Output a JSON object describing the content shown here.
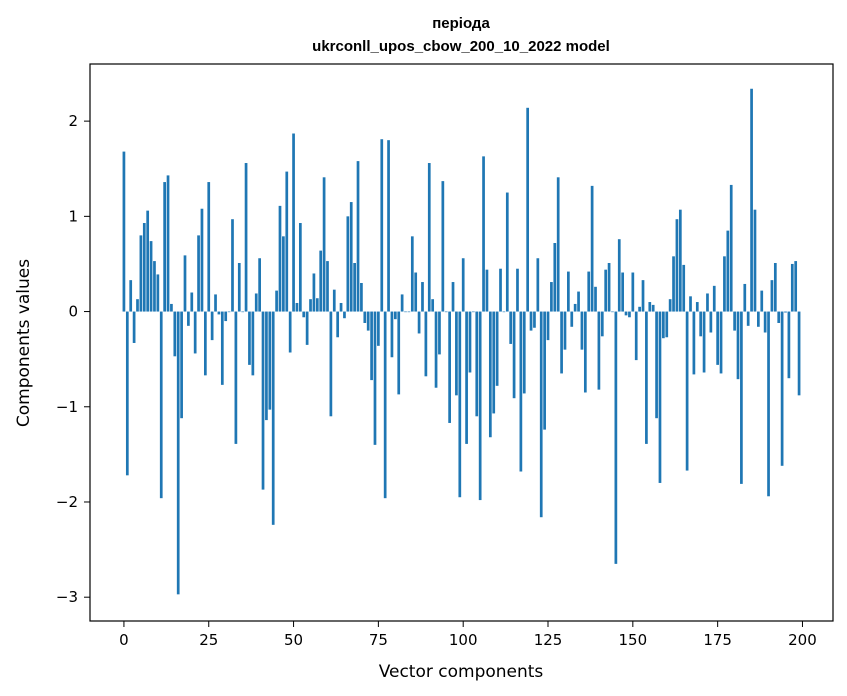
{
  "chart_data": {
    "type": "bar",
    "title": [
      "періода",
      "ukrconll_upos_cbow_200_10_2022 model"
    ],
    "xlabel": "Vector components",
    "ylabel": "Components values",
    "xlim": [
      -10,
      209
    ],
    "ylim": [
      -3.25,
      2.6
    ],
    "xticks": [
      0,
      25,
      50,
      75,
      100,
      125,
      150,
      175,
      200
    ],
    "yticks": [
      -3,
      -2,
      -1,
      0,
      1,
      2
    ],
    "ytick_labels": [
      "−3",
      "−2",
      "−1",
      "0",
      "1",
      "2"
    ],
    "bar_color": "#1f77b4",
    "grid": false,
    "legend": "none",
    "values": [
      1.68,
      -1.72,
      0.33,
      -0.33,
      0.13,
      0.8,
      0.93,
      1.06,
      0.74,
      0.53,
      0.39,
      -1.96,
      1.36,
      1.43,
      0.08,
      -0.47,
      -2.97,
      -1.12,
      0.59,
      -0.15,
      0.2,
      -0.44,
      0.8,
      1.08,
      -0.67,
      1.36,
      -0.3,
      0.18,
      -0.03,
      -0.77,
      -0.1,
      0.0,
      0.97,
      -1.39,
      0.51,
      0.0,
      1.56,
      -0.56,
      -0.67,
      0.19,
      0.56,
      -1.87,
      -1.14,
      -1.03,
      -2.24,
      0.22,
      1.11,
      0.79,
      1.47,
      -0.43,
      1.87,
      0.09,
      0.93,
      -0.06,
      -0.35,
      0.13,
      0.4,
      0.14,
      0.64,
      1.41,
      0.53,
      -1.1,
      0.23,
      -0.27,
      0.09,
      -0.07,
      1.0,
      1.15,
      0.51,
      1.58,
      0.3,
      -0.12,
      -0.2,
      -0.72,
      -1.4,
      -0.36,
      1.81,
      -1.96,
      1.8,
      -0.48,
      -0.08,
      -0.87,
      0.18,
      0.0,
      0.0,
      0.79,
      0.41,
      -0.23,
      0.31,
      -0.68,
      1.56,
      0.13,
      -0.8,
      -0.45,
      1.37,
      0.0,
      -1.17,
      0.31,
      -0.88,
      -1.95,
      0.56,
      -1.39,
      -0.64,
      0.0,
      -1.1,
      -1.98,
      1.63,
      0.44,
      -1.32,
      -1.07,
      -0.78,
      0.45,
      0.0,
      1.25,
      -0.34,
      -0.91,
      0.45,
      -1.68,
      -0.86,
      2.14,
      -0.2,
      -0.17,
      0.56,
      -2.16,
      -1.24,
      -0.3,
      0.31,
      0.72,
      1.41,
      -0.65,
      -0.4,
      0.42,
      -0.16,
      0.08,
      0.21,
      -0.4,
      -0.85,
      0.42,
      1.32,
      0.26,
      -0.82,
      -0.26,
      0.44,
      0.51,
      0.0,
      -2.65,
      0.76,
      0.41,
      -0.04,
      -0.06,
      0.41,
      -0.51,
      0.05,
      0.33,
      -1.39,
      0.1,
      0.07,
      -1.12,
      -1.8,
      -0.28,
      -0.27,
      0.13,
      0.58,
      0.97,
      1.07,
      0.49,
      -1.67,
      0.16,
      -0.66,
      0.1,
      -0.26,
      -0.64,
      0.19,
      -0.22,
      0.27,
      -0.56,
      -0.65,
      0.58,
      0.85,
      1.33,
      -0.2,
      -0.71,
      -1.81,
      0.29,
      -0.15,
      2.34,
      1.07,
      -0.16,
      0.22,
      -0.22,
      -1.94,
      0.33,
      0.51,
      -0.12,
      -1.62,
      -0.01,
      -0.7,
      0.5,
      0.53,
      -0.88
    ]
  }
}
